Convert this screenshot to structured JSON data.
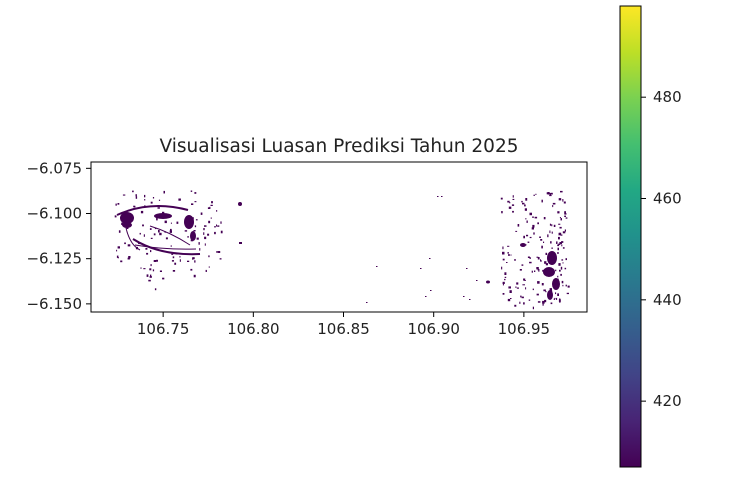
{
  "chart_data": {
    "type": "heatmap",
    "title": "Visualisasi Luasan Prediksi Tahun 2025",
    "xlabel": "",
    "ylabel": "",
    "xlim": [
      106.71,
      106.985
    ],
    "ylim": [
      -6.1545,
      -6.0715
    ],
    "x_ticks": [
      106.75,
      106.8,
      106.85,
      106.9,
      106.95
    ],
    "x_tick_labels": [
      "106.75",
      "106.80",
      "106.85",
      "106.90",
      "106.95"
    ],
    "y_ticks": [
      -6.075,
      -6.1,
      -6.125,
      -6.15
    ],
    "y_tick_labels": [
      "−6.075",
      "−6.100",
      "−6.125",
      "−6.150"
    ],
    "grid": false,
    "colormap": "viridis",
    "colorbar": {
      "range": [
        407,
        498
      ],
      "ticks": [
        420,
        440,
        460,
        480
      ],
      "tick_labels": [
        "420",
        "440",
        "460",
        "480"
      ]
    },
    "dominant_color": "#440154",
    "regions": [
      {
        "name": "west cluster",
        "x_range": [
          106.722,
          106.778
        ],
        "y_range": [
          -6.142,
          -6.082
        ]
      },
      {
        "name": "east cluster",
        "x_range": [
          106.935,
          106.972
        ],
        "y_range": [
          -6.15,
          -6.087
        ]
      }
    ]
  }
}
